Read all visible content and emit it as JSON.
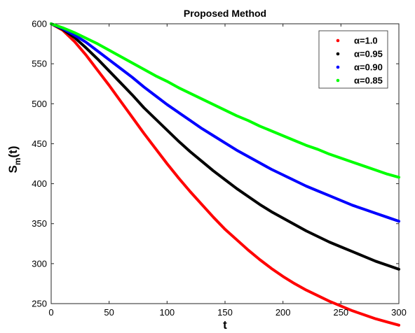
{
  "chart_data": {
    "type": "line",
    "title": "Proposed Method",
    "xlabel": "t",
    "ylabel_main": "S",
    "ylabel_sub": "m",
    "ylabel_tail": "(t)",
    "xlim": [
      0,
      300
    ],
    "ylim": [
      250,
      600
    ],
    "xticks": [
      0,
      50,
      100,
      150,
      200,
      250,
      300
    ],
    "yticks": [
      250,
      300,
      350,
      400,
      450,
      500,
      550,
      600
    ],
    "grid": false,
    "legend_position": "top-right",
    "x": [
      0,
      10,
      20,
      30,
      40,
      50,
      60,
      70,
      80,
      90,
      100,
      110,
      120,
      130,
      140,
      150,
      160,
      170,
      180,
      190,
      200,
      210,
      220,
      230,
      240,
      250,
      260,
      270,
      280,
      290,
      300
    ],
    "series": [
      {
        "name": "α=1.0",
        "color": "#ff0000",
        "values": [
          600,
          592,
          578,
          561,
          542,
          523,
          503,
          483,
          463,
          444,
          425,
          407,
          390,
          374,
          358,
          343,
          330,
          317,
          305,
          294,
          284,
          275,
          267,
          260,
          253,
          247,
          241,
          236,
          231,
          227,
          223
        ]
      },
      {
        "name": "α=0.95",
        "color": "#000000",
        "values": [
          600,
          593,
          583,
          570,
          556,
          541,
          526,
          511,
          495,
          481,
          467,
          453,
          440,
          428,
          416,
          405,
          394,
          384,
          374,
          365,
          357,
          349,
          341,
          334,
          327,
          321,
          315,
          309,
          303,
          298,
          293
        ]
      },
      {
        "name": "α=0.90",
        "color": "#0000ff",
        "values": [
          600,
          594,
          586,
          577,
          566,
          555,
          544,
          533,
          521,
          510,
          499,
          489,
          479,
          469,
          460,
          451,
          442,
          434,
          426,
          418,
          411,
          404,
          397,
          391,
          385,
          379,
          373,
          368,
          363,
          358,
          353
        ]
      },
      {
        "name": "α=0.85",
        "color": "#00ff00",
        "values": [
          600,
          595,
          589,
          582,
          575,
          567,
          559,
          551,
          543,
          535,
          528,
          520,
          513,
          506,
          499,
          492,
          485,
          479,
          472,
          466,
          460,
          454,
          448,
          443,
          437,
          432,
          427,
          422,
          417,
          412,
          408
        ]
      }
    ]
  }
}
